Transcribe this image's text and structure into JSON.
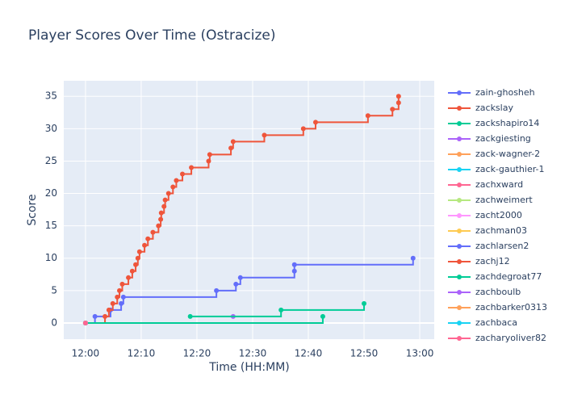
{
  "chart_data": {
    "type": "step",
    "title": "Player Scores Over Time (Ostracize)",
    "x_label": "Time (HH:MM)",
    "y_label": "Score",
    "xlim": [
      -3.9,
      62.6
    ],
    "ylim": [
      -2.5,
      37.4
    ],
    "xticks": [
      {
        "value": 0,
        "label": "12:00"
      },
      {
        "value": 10,
        "label": "12:10"
      },
      {
        "value": 20,
        "label": "12:20"
      },
      {
        "value": 30,
        "label": "12:30"
      },
      {
        "value": 40,
        "label": "12:40"
      },
      {
        "value": 50,
        "label": "12:50"
      },
      {
        "value": 60,
        "label": "13:00"
      }
    ],
    "yticks": [
      0,
      5,
      10,
      15,
      20,
      25,
      30,
      35
    ],
    "grid": true,
    "series": [
      {
        "name": "zain-ghosheh",
        "color": "#636efa",
        "x": [
          0,
          1.7,
          4.5,
          6.4,
          6.8,
          23.5,
          27,
          27.8,
          37.5,
          37.5,
          58.8
        ],
        "values": [
          0,
          1,
          2,
          3,
          4,
          5,
          6,
          7,
          8,
          9,
          10
        ]
      },
      {
        "name": "zackslay",
        "color": "#EF553B",
        "x": [
          0,
          3.5,
          4.2,
          4.9,
          5.7,
          6.1,
          6.6,
          7.7,
          8.4,
          9.0,
          9.4,
          9.7,
          10.6,
          11.2,
          12.1,
          13.1,
          13.5,
          13.6,
          14.1,
          14.3,
          14.9,
          15.7,
          16.3,
          17.4,
          19.0,
          22.1,
          22.3,
          26.1,
          26.5,
          32.1,
          39.1,
          41.3,
          50.7,
          55.1,
          56.2,
          56.2
        ],
        "values": [
          0,
          1,
          2,
          3,
          4,
          5,
          6,
          7,
          8,
          9,
          10,
          11,
          12,
          13,
          14,
          15,
          16,
          17,
          18,
          19,
          20,
          21,
          22,
          23,
          24,
          25,
          26,
          27,
          28,
          29,
          30,
          31,
          32,
          33,
          34,
          35
        ]
      },
      {
        "name": "zackshapiro14",
        "color": "#00cc96",
        "x": [
          0,
          42.6
        ],
        "values": [
          0,
          1
        ]
      },
      {
        "name": "zackgiesting",
        "color": "#ab63fa",
        "x": [
          26.5
        ],
        "values": [
          1
        ]
      },
      {
        "name": "zack-wagner-2",
        "color": "#FFA15A",
        "x": [
          0
        ],
        "values": [
          0
        ]
      },
      {
        "name": "zack-gauthier-1",
        "color": "#19d3f3",
        "x": [
          0
        ],
        "values": [
          0
        ]
      },
      {
        "name": "zachxward",
        "color": "#FF6692",
        "x": [
          0
        ],
        "values": [
          0
        ]
      },
      {
        "name": "zachweimert",
        "color": "#B6E880",
        "x": [
          0
        ],
        "values": [
          0
        ]
      },
      {
        "name": "zacht2000",
        "color": "#FF97FF",
        "x": [
          0
        ],
        "values": [
          0
        ]
      },
      {
        "name": "zachman03",
        "color": "#FECB52",
        "x": [
          0
        ],
        "values": [
          0
        ]
      },
      {
        "name": "zachlarsen2",
        "color": "#636efa",
        "x": [
          0
        ],
        "values": [
          0
        ]
      },
      {
        "name": "zachj12",
        "color": "#EF553B",
        "x": [
          0
        ],
        "values": [
          0
        ]
      },
      {
        "name": "zachdegroat77",
        "color": "#00cc96",
        "x": [
          18.8,
          35.1,
          50
        ],
        "values": [
          1,
          2,
          3
        ]
      },
      {
        "name": "zachboulb",
        "color": "#ab63fa",
        "x": [
          0
        ],
        "values": [
          0
        ]
      },
      {
        "name": "zachbarker0313",
        "color": "#FFA15A",
        "x": [
          0
        ],
        "values": [
          0
        ]
      },
      {
        "name": "zachbaca",
        "color": "#19d3f3",
        "x": [
          0
        ],
        "values": [
          0
        ]
      },
      {
        "name": "zacharyoliver82",
        "color": "#FF6692",
        "x": [
          0
        ],
        "values": [
          0
        ]
      }
    ]
  }
}
